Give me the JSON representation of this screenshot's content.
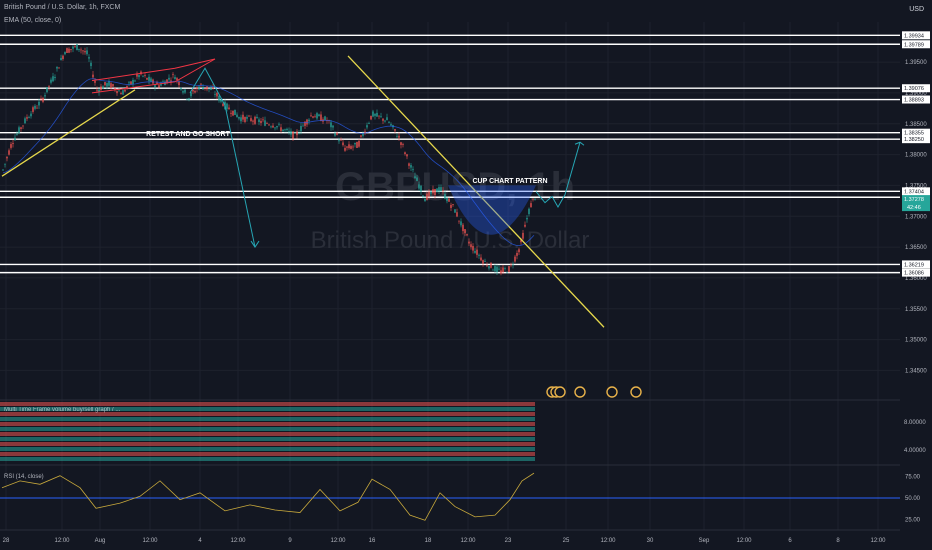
{
  "header": {
    "symbol_line": "British Pound / U.S. Dollar, 1h, FXCM",
    "ema_line": "EMA (50, close, 0)",
    "currency": "USD"
  },
  "watermark": {
    "ticker": "GBPUSD, 1h",
    "name": "British Pound / U.S. Dollar"
  },
  "annotations": {
    "retest": "RETEST AND GO SHORT",
    "cup": "CUP CHART PATTERN"
  },
  "indicator_label": "Multi Time Frame volume buy/sell graph / ...",
  "rsi_label": "RSI (14, close)",
  "colors": {
    "background": "#131722",
    "up": "#26a69a",
    "down": "#ef5350",
    "trendline": "#e6d84c",
    "arrow": "#26a6b4",
    "rsi": "#c8a93c",
    "rsi_mid": "#2962ff",
    "level": "#ffffff"
  },
  "chart_data": {
    "type": "candlestick",
    "title": "British Pound / U.S. Dollar, 1h, FXCM",
    "ylim": [
      1.3415,
      1.4015
    ],
    "y_ticks": [
      "1.39500",
      "1.39000",
      "1.38500",
      "1.38000",
      "1.37500",
      "1.37000",
      "1.36500",
      "1.36000",
      "1.35500",
      "1.35000",
      "1.34500"
    ],
    "x_ticks": [
      "28",
      "12:00",
      "Aug",
      "12:00",
      "4",
      "12:00",
      "9",
      "12:00",
      "16",
      "18",
      "12:00",
      "23",
      "25",
      "12:00",
      "30",
      "Sep",
      "12:00",
      "6",
      "8",
      "12:00"
    ],
    "levels": [
      1.39934,
      1.39789,
      1.39076,
      1.38893,
      1.38355,
      1.3825,
      1.37404,
      1.37308,
      1.36219,
      1.36086
    ],
    "level_labels": [
      "1.39934",
      "1.39789",
      "1.39076",
      "1.38893",
      "1.38355",
      "1.38250",
      "1.37404",
      "1.37308",
      "1.36219",
      "1.36086"
    ],
    "current_price": {
      "value": 1.37278,
      "label": "1.37278",
      "countdown": "42:46"
    },
    "price_path": [
      {
        "x": 2,
        "y": 1.377
      },
      {
        "x": 12,
        "y": 1.382
      },
      {
        "x": 28,
        "y": 1.3862
      },
      {
        "x": 42,
        "y": 1.3888
      },
      {
        "x": 55,
        "y": 1.393
      },
      {
        "x": 65,
        "y": 1.3968
      },
      {
        "x": 78,
        "y": 1.3975
      },
      {
        "x": 88,
        "y": 1.3962
      },
      {
        "x": 97,
        "y": 1.3905
      },
      {
        "x": 108,
        "y": 1.3915
      },
      {
        "x": 122,
        "y": 1.39
      },
      {
        "x": 140,
        "y": 1.393
      },
      {
        "x": 158,
        "y": 1.3912
      },
      {
        "x": 175,
        "y": 1.3928
      },
      {
        "x": 188,
        "y": 1.3892
      },
      {
        "x": 200,
        "y": 1.3912
      },
      {
        "x": 212,
        "y": 1.3905
      },
      {
        "x": 225,
        "y": 1.388
      },
      {
        "x": 240,
        "y": 1.386
      },
      {
        "x": 258,
        "y": 1.3855
      },
      {
        "x": 275,
        "y": 1.3848
      },
      {
        "x": 295,
        "y": 1.383
      },
      {
        "x": 312,
        "y": 1.3865
      },
      {
        "x": 328,
        "y": 1.3855
      },
      {
        "x": 345,
        "y": 1.381
      },
      {
        "x": 358,
        "y": 1.3815
      },
      {
        "x": 372,
        "y": 1.3865
      },
      {
        "x": 388,
        "y": 1.3855
      },
      {
        "x": 400,
        "y": 1.3825
      },
      {
        "x": 412,
        "y": 1.3775
      },
      {
        "x": 425,
        "y": 1.373
      },
      {
        "x": 440,
        "y": 1.3745
      },
      {
        "x": 455,
        "y": 1.371
      },
      {
        "x": 470,
        "y": 1.3655
      },
      {
        "x": 485,
        "y": 1.3625
      },
      {
        "x": 500,
        "y": 1.361
      },
      {
        "x": 510,
        "y": 1.3615
      },
      {
        "x": 520,
        "y": 1.365
      },
      {
        "x": 530,
        "y": 1.3715
      },
      {
        "x": 536,
        "y": 1.3735
      }
    ],
    "trendlines": [
      {
        "x1": 2,
        "y1": 1.3765,
        "x2": 135,
        "y2": 1.3905
      },
      {
        "x1": 348,
        "y1": 1.396,
        "x2": 604,
        "y2": 1.352
      }
    ],
    "rsi": {
      "label": "RSI (14, close)",
      "ylim": [
        15,
        85
      ],
      "ticks": [
        "75.00",
        "50.00",
        "25.00"
      ],
      "mid": 50,
      "path": [
        {
          "x": 2,
          "y": 62
        },
        {
          "x": 20,
          "y": 70
        },
        {
          "x": 40,
          "y": 66
        },
        {
          "x": 60,
          "y": 76
        },
        {
          "x": 80,
          "y": 62
        },
        {
          "x": 96,
          "y": 38
        },
        {
          "x": 120,
          "y": 44
        },
        {
          "x": 140,
          "y": 52
        },
        {
          "x": 160,
          "y": 70
        },
        {
          "x": 180,
          "y": 48
        },
        {
          "x": 200,
          "y": 56
        },
        {
          "x": 225,
          "y": 35
        },
        {
          "x": 250,
          "y": 42
        },
        {
          "x": 275,
          "y": 36
        },
        {
          "x": 300,
          "y": 33
        },
        {
          "x": 320,
          "y": 60
        },
        {
          "x": 340,
          "y": 35
        },
        {
          "x": 358,
          "y": 45
        },
        {
          "x": 372,
          "y": 72
        },
        {
          "x": 390,
          "y": 60
        },
        {
          "x": 410,
          "y": 30
        },
        {
          "x": 425,
          "y": 24
        },
        {
          "x": 440,
          "y": 56
        },
        {
          "x": 455,
          "y": 40
        },
        {
          "x": 475,
          "y": 28
        },
        {
          "x": 495,
          "y": 30
        },
        {
          "x": 510,
          "y": 48
        },
        {
          "x": 522,
          "y": 70
        },
        {
          "x": 534,
          "y": 79
        }
      ]
    },
    "volume_panel": {
      "ticks": [
        "8.00000",
        "4.00000"
      ]
    }
  }
}
